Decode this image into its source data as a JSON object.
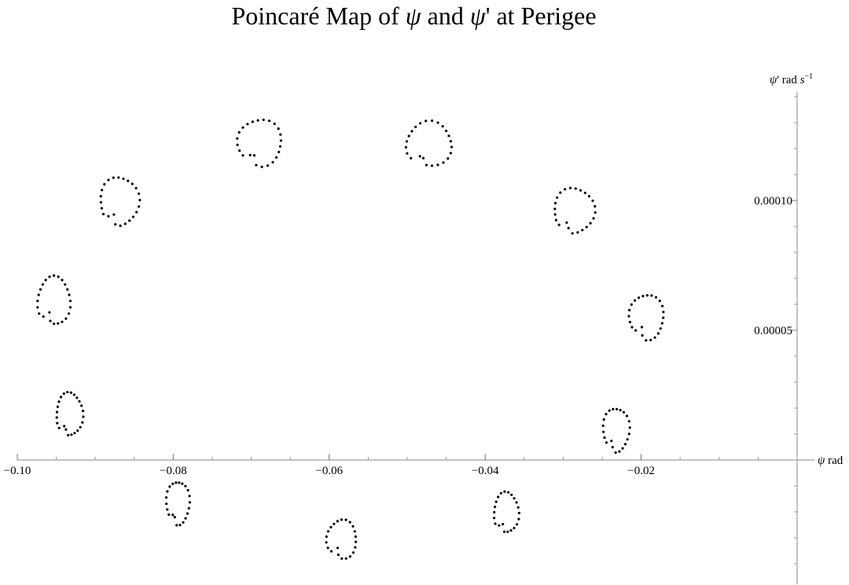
{
  "chart_data": {
    "type": "scatter",
    "title": {
      "prefix": "Poincaré Map of ",
      "sym1": "ψ",
      "mid": " and ",
      "sym2": "ψ",
      "suffix": "' at Perigee"
    },
    "xlabel": {
      "sym": "ψ",
      "text": " rad"
    },
    "ylabel": {
      "sym": "ψ",
      "text": "' rad ",
      "unit": "s",
      "exp": "−1"
    },
    "xlim": [
      -0.1,
      0.0
    ],
    "ylim": [
      -4.8e-05,
      0.000142
    ],
    "x_ticks": [
      {
        "value": -0.1,
        "label": "−0.10"
      },
      {
        "value": -0.08,
        "label": "−0.08"
      },
      {
        "value": -0.06,
        "label": "−0.06"
      },
      {
        "value": -0.04,
        "label": "−0.04"
      },
      {
        "value": -0.02,
        "label": "−0.02"
      }
    ],
    "y_ticks": [
      {
        "value": 5e-05,
        "label": "0.00005"
      },
      {
        "value": 0.0001,
        "label": "0.00010"
      }
    ],
    "x_minor_step": 0.005,
    "y_minor_step": 1e-05,
    "grid": false,
    "legend": "none",
    "marker_color": "#000000",
    "clusters": [
      {
        "cx": -0.0953,
        "cy": 6.13e-05,
        "rx": 0.0021,
        "ry": 9.3e-06,
        "points": 24
      },
      {
        "cx": -0.0933,
        "cy": 1.76e-05,
        "rx": 0.0017,
        "ry": 8.3e-06,
        "points": 24
      },
      {
        "cx": -0.0869,
        "cy": 9.97e-05,
        "rx": 0.0025,
        "ry": 9.3e-06,
        "points": 24
      },
      {
        "cx": -0.0794,
        "cy": -1.66e-05,
        "rx": 0.0015,
        "ry": 8.3e-06,
        "points": 22
      },
      {
        "cx": -0.0689,
        "cy": 0.0001223,
        "rx": 0.0028,
        "ry": 9e-06,
        "points": 24
      },
      {
        "cx": -0.0584,
        "cy": -3.06e-05,
        "rx": 0.0019,
        "ry": 7.5e-06,
        "points": 22
      },
      {
        "cx": -0.0472,
        "cy": 0.0001217,
        "rx": 0.0029,
        "ry": 8.7e-06,
        "points": 24
      },
      {
        "cx": -0.0373,
        "cy": -2.03e-05,
        "rx": 0.0016,
        "ry": 7.8e-06,
        "points": 22
      },
      {
        "cx": -0.0286,
        "cy": 9.61e-05,
        "rx": 0.0026,
        "ry": 8.7e-06,
        "points": 24
      },
      {
        "cx": -0.0232,
        "cy": 1.16e-05,
        "rx": 0.0017,
        "ry": 8.4e-06,
        "points": 22
      },
      {
        "cx": -0.0193,
        "cy": 5.51e-05,
        "rx": 0.0022,
        "ry": 8.7e-06,
        "points": 24
      }
    ]
  }
}
